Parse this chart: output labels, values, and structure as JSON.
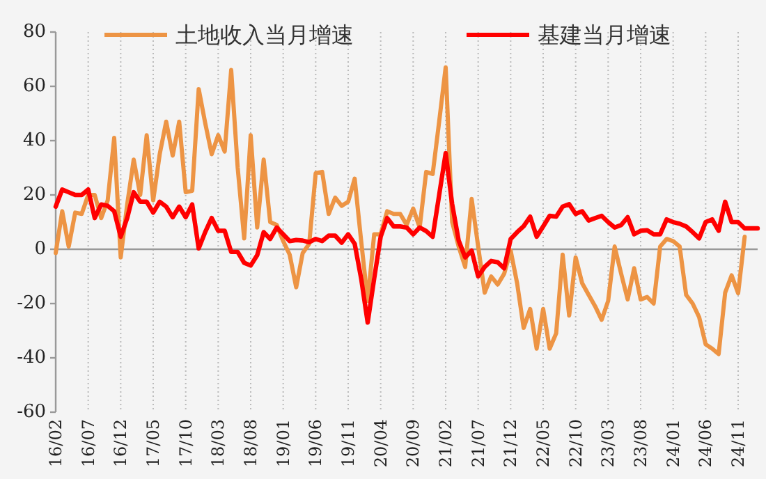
{
  "chart_data": {
    "type": "line",
    "grid": "x",
    "legend": "top",
    "ylim": [
      -60,
      80
    ],
    "yticks": [
      -60,
      -40,
      -20,
      0,
      20,
      40,
      60,
      80
    ],
    "categories": [
      "16/02",
      null,
      null,
      null,
      null,
      "16/07",
      null,
      null,
      null,
      null,
      "16/12",
      null,
      null,
      null,
      null,
      "17/05",
      null,
      null,
      null,
      null,
      "17/10",
      null,
      null,
      null,
      null,
      "18/03",
      null,
      null,
      null,
      null,
      "18/08",
      null,
      null,
      null,
      null,
      "19/01",
      null,
      null,
      null,
      null,
      "19/06",
      null,
      null,
      null,
      null,
      "19/11",
      null,
      null,
      null,
      null,
      "20/04",
      null,
      null,
      null,
      null,
      "20/09",
      null,
      null,
      null,
      null,
      "21/02",
      null,
      null,
      null,
      null,
      "21/07",
      null,
      null,
      null,
      null,
      "21/12",
      null,
      null,
      null,
      null,
      "22/05",
      null,
      null,
      null,
      null,
      "22/10",
      null,
      null,
      null,
      null,
      "23/03",
      null,
      null,
      null,
      null,
      "23/08",
      null,
      null,
      null,
      null,
      "24/01",
      null,
      null,
      null,
      null,
      "24/06",
      null,
      null,
      null,
      null,
      "24/11",
      null,
      null,
      null
    ],
    "series": [
      {
        "name": "土地收入当月增速",
        "color": "#ed9444",
        "values": [
          -1.4,
          14,
          1,
          13.5,
          13,
          20,
          20,
          11.5,
          18,
          41,
          -3,
          16.5,
          33,
          20,
          42,
          18,
          35,
          47,
          34.5,
          47,
          21,
          21.5,
          59,
          46.5,
          35,
          42,
          36,
          66,
          30,
          4,
          42,
          8,
          33,
          10,
          9,
          3,
          -2,
          -14,
          -1.4,
          2,
          28,
          28.5,
          13,
          19,
          16,
          17.5,
          26,
          3,
          -19,
          5.5,
          5.5,
          14,
          13,
          13,
          9,
          15,
          8,
          28.5,
          27.7,
          47,
          67,
          10,
          1,
          -6.5,
          18.5,
          1,
          -16,
          -10,
          -13,
          -9,
          -0.5,
          -12.6,
          -29,
          -22,
          -36.6,
          -22,
          -36.6,
          -31,
          -2,
          -24.4,
          -3,
          -12.5,
          -16.8,
          -21,
          -26,
          -19,
          1,
          -9,
          -18.5,
          -7,
          -18.5,
          -17.6,
          -20,
          1,
          3.8,
          3,
          1,
          -16.8,
          -20,
          -25,
          -35,
          -36.6,
          -38.6,
          -16,
          -9.6,
          -16.2,
          4.6,
          null,
          null
        ]
      },
      {
        "name": "基建当月增速",
        "color": "#ff0000",
        "values": [
          15.7,
          22,
          21,
          20,
          20,
          22,
          11.5,
          16.5,
          16,
          14,
          4.6,
          11.5,
          21,
          17.5,
          17.5,
          13.5,
          17.5,
          15.7,
          11.8,
          15.7,
          11.8,
          16.5,
          0.3,
          6.3,
          11.5,
          6.8,
          6.8,
          -1,
          -1,
          -5,
          -6,
          -2.2,
          6.3,
          3.8,
          8,
          5.5,
          3,
          3.4,
          3.2,
          2.6,
          3.8,
          3,
          5,
          5,
          2.4,
          5.5,
          2,
          -10.8,
          -27,
          -10.8,
          4.6,
          11.5,
          8.4,
          8.4,
          8,
          5.5,
          8,
          6.7,
          4.6,
          20,
          35.4,
          16.6,
          3.2,
          -3,
          -0.5,
          -10,
          -6.5,
          -4.3,
          -4.8,
          -7,
          3.8,
          6.3,
          8.5,
          12,
          4.6,
          8.4,
          12.3,
          12,
          15.7,
          16.6,
          13,
          14,
          10.6,
          11.5,
          12.3,
          10,
          8,
          8.9,
          11.8,
          5.5,
          6.8,
          7,
          5.5,
          5.5,
          11,
          10,
          9.4,
          8.4,
          6.3,
          4,
          10,
          11,
          6.8,
          17.5,
          10,
          10,
          7.7,
          7.7,
          7.7
        ]
      }
    ]
  }
}
